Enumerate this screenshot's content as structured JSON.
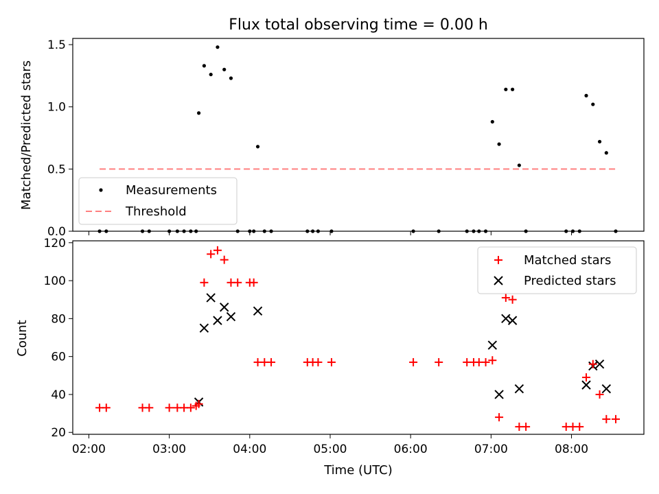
{
  "chart_data": [
    {
      "type": "scatter",
      "title": "Flux total observing time = 0.00 h",
      "xlabel": "",
      "ylabel": "Matched/Predicted stars",
      "ylim": [
        0,
        1.55
      ],
      "yticks": [
        "0.0",
        "0.5",
        "1.0",
        "1.5"
      ],
      "legend_position": "lower-left",
      "series": [
        {
          "name": "Measurements",
          "color": "#000000",
          "marker": "dot",
          "points": [
            [
              "02:08",
              0.0
            ],
            [
              "02:13",
              0.0
            ],
            [
              "02:40",
              0.0
            ],
            [
              "02:45",
              0.0
            ],
            [
              "03:00",
              0.0
            ],
            [
              "03:06",
              0.0
            ],
            [
              "03:11",
              0.0
            ],
            [
              "03:16",
              0.0
            ],
            [
              "03:20",
              0.0
            ],
            [
              "03:22",
              0.95
            ],
            [
              "03:26",
              1.33
            ],
            [
              "03:31",
              1.26
            ],
            [
              "03:36",
              1.48
            ],
            [
              "03:41",
              1.3
            ],
            [
              "03:46",
              1.23
            ],
            [
              "03:51",
              0.0
            ],
            [
              "04:00",
              0.0
            ],
            [
              "04:03",
              0.0
            ],
            [
              "04:06",
              0.68
            ],
            [
              "04:11",
              0.0
            ],
            [
              "04:16",
              0.0
            ],
            [
              "04:43",
              0.0
            ],
            [
              "04:47",
              0.0
            ],
            [
              "04:51",
              0.0
            ],
            [
              "05:01",
              0.0
            ],
            [
              "06:02",
              0.0
            ],
            [
              "06:21",
              0.0
            ],
            [
              "06:42",
              0.0
            ],
            [
              "06:47",
              0.0
            ],
            [
              "06:51",
              0.0
            ],
            [
              "06:56",
              0.0
            ],
            [
              "07:01",
              0.88
            ],
            [
              "07:06",
              0.7
            ],
            [
              "07:11",
              1.14
            ],
            [
              "07:16",
              1.14
            ],
            [
              "07:21",
              0.53
            ],
            [
              "07:26",
              0.0
            ],
            [
              "07:56",
              0.0
            ],
            [
              "08:01",
              0.0
            ],
            [
              "08:06",
              0.0
            ],
            [
              "08:11",
              1.09
            ],
            [
              "08:16",
              1.02
            ],
            [
              "08:21",
              0.72
            ],
            [
              "08:26",
              0.63
            ],
            [
              "08:33",
              0.0
            ]
          ]
        },
        {
          "name": "Threshold",
          "color": "#ff7f7f",
          "style": "dashed-line",
          "points": [
            [
              "02:08",
              0.5
            ],
            [
              "08:33",
              0.5
            ]
          ]
        }
      ]
    },
    {
      "type": "scatter",
      "title": "",
      "xlabel": "Time (UTC)",
      "ylabel": "Count",
      "ylim": [
        19,
        121
      ],
      "yticks": [
        "20",
        "40",
        "60",
        "80",
        "100",
        "120"
      ],
      "xlim": [
        "01:48",
        "08:54"
      ],
      "xticks": [
        "02:00",
        "03:00",
        "04:00",
        "05:00",
        "06:00",
        "07:00",
        "08:00"
      ],
      "legend_position": "upper-right",
      "series": [
        {
          "name": "Matched stars",
          "color": "#ff0000",
          "marker": "plus",
          "points": [
            [
              "02:08",
              33
            ],
            [
              "02:13",
              33
            ],
            [
              "02:40",
              33
            ],
            [
              "02:45",
              33
            ],
            [
              "03:00",
              33
            ],
            [
              "03:06",
              33
            ],
            [
              "03:11",
              33
            ],
            [
              "03:16",
              33
            ],
            [
              "03:20",
              34
            ],
            [
              "03:22",
              35
            ],
            [
              "03:26",
              99
            ],
            [
              "03:31",
              114
            ],
            [
              "03:36",
              116
            ],
            [
              "03:41",
              111
            ],
            [
              "03:46",
              99
            ],
            [
              "03:51",
              99
            ],
            [
              "04:00",
              99
            ],
            [
              "04:03",
              99
            ],
            [
              "04:06",
              57
            ],
            [
              "04:11",
              57
            ],
            [
              "04:16",
              57
            ],
            [
              "04:43",
              57
            ],
            [
              "04:47",
              57
            ],
            [
              "04:51",
              57
            ],
            [
              "05:01",
              57
            ],
            [
              "06:02",
              57
            ],
            [
              "06:21",
              57
            ],
            [
              "06:42",
              57
            ],
            [
              "06:47",
              57
            ],
            [
              "06:51",
              57
            ],
            [
              "06:56",
              57
            ],
            [
              "07:01",
              58
            ],
            [
              "07:06",
              28
            ],
            [
              "07:11",
              91
            ],
            [
              "07:16",
              90
            ],
            [
              "07:21",
              23
            ],
            [
              "07:26",
              23
            ],
            [
              "07:56",
              23
            ],
            [
              "08:01",
              23
            ],
            [
              "08:06",
              23
            ],
            [
              "08:11",
              49
            ],
            [
              "08:16",
              56
            ],
            [
              "08:21",
              40
            ],
            [
              "08:26",
              27
            ],
            [
              "08:33",
              27
            ]
          ]
        },
        {
          "name": "Predicted stars",
          "color": "#000000",
          "marker": "x",
          "points": [
            [
              "03:22",
              36
            ],
            [
              "03:26",
              75
            ],
            [
              "03:31",
              91
            ],
            [
              "03:36",
              79
            ],
            [
              "03:41",
              86
            ],
            [
              "03:46",
              81
            ],
            [
              "04:06",
              84
            ],
            [
              "07:01",
              66
            ],
            [
              "07:06",
              40
            ],
            [
              "07:11",
              80
            ],
            [
              "07:16",
              79
            ],
            [
              "07:21",
              43
            ],
            [
              "08:11",
              45
            ],
            [
              "08:16",
              55
            ],
            [
              "08:21",
              56
            ],
            [
              "08:26",
              43
            ]
          ]
        }
      ]
    }
  ]
}
